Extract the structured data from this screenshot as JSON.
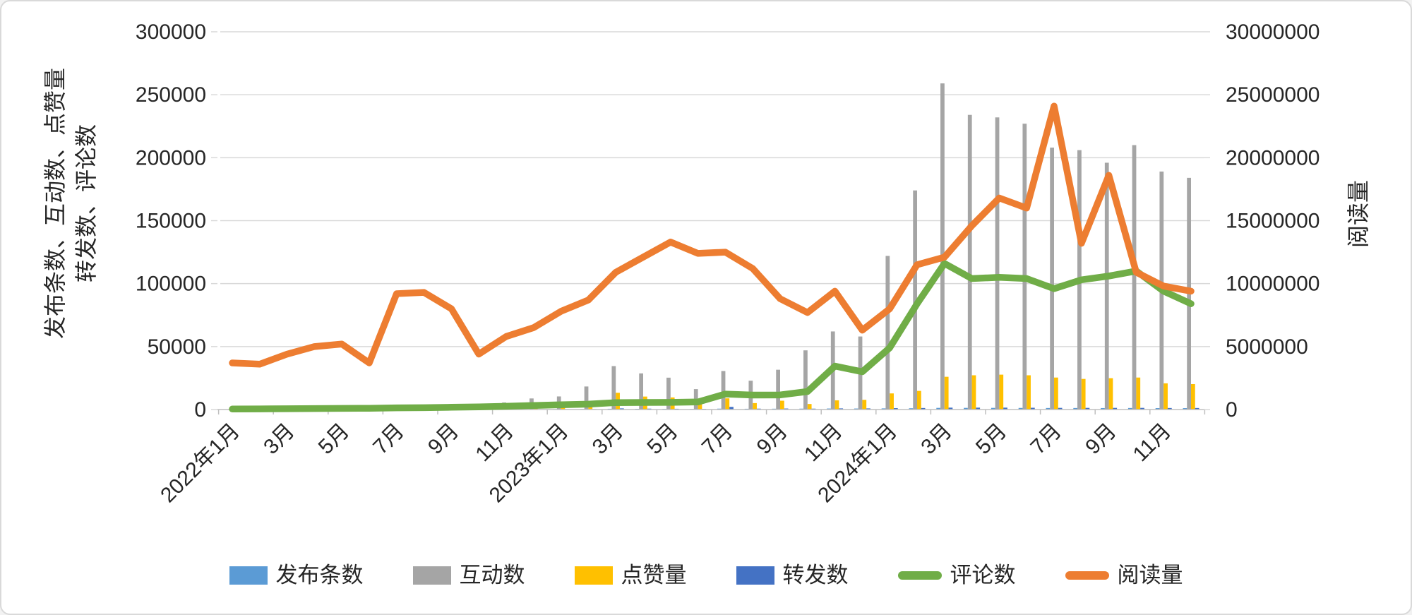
{
  "frame": {
    "background": "#ffffff",
    "border_color": "#d9d9d9"
  },
  "chart_data": {
    "type": "bar",
    "subtype": "combo-clustered-bar-with-lines",
    "title": "",
    "xlabel": "",
    "grid": true,
    "legend_position": "bottom",
    "categories": [
      "2022年1月",
      "2022年2月",
      "2022年3月",
      "2022年4月",
      "2022年5月",
      "2022年6月",
      "2022年7月",
      "2022年8月",
      "2022年9月",
      "2022年10月",
      "2022年11月",
      "2022年12月",
      "2023年1月",
      "2023年2月",
      "2023年3月",
      "2023年4月",
      "2023年5月",
      "2023年6月",
      "2023年7月",
      "2023年8月",
      "2023年9月",
      "2023年10月",
      "2023年11月",
      "2023年12月",
      "2024年1月",
      "2024年2月",
      "2024年3月",
      "2024年4月",
      "2024年5月",
      "2024年6月",
      "2024年7月",
      "2024年8月",
      "2024年9月",
      "2024年10月",
      "2024年11月",
      "2024年12月"
    ],
    "x_tick_labels": [
      "2022年1月",
      "3月",
      "5月",
      "7月",
      "9月",
      "11月",
      "2023年1月",
      "3月",
      "5月",
      "7月",
      "9月",
      "11月",
      "2024年1月",
      "3月",
      "5月",
      "7月",
      "9月",
      "11月"
    ],
    "x_tick_every": 2,
    "left_axis": {
      "title_line1": "发布条数、互动数、点赞量",
      "title_line2": "转发数、评论数",
      "min": 0,
      "max": 300000,
      "step": 50000,
      "tick_labels": [
        "0",
        "50000",
        "100000",
        "150000",
        "200000",
        "250000",
        "300000"
      ]
    },
    "right_axis": {
      "title": "阅读量",
      "min": 0,
      "max": 30000000,
      "step": 5000000,
      "tick_labels": [
        "0",
        "5000000",
        "10000000",
        "15000000",
        "20000000",
        "25000000",
        "30000000"
      ]
    },
    "series": [
      {
        "name": "发布条数",
        "type": "bar",
        "axis": "left",
        "color": "#5B9BD5",
        "values": [
          60,
          70,
          80,
          90,
          100,
          90,
          150,
          140,
          180,
          200,
          250,
          300,
          350,
          400,
          600,
          550,
          500,
          450,
          700,
          600,
          650,
          700,
          800,
          800,
          900,
          1000,
          1300,
          1300,
          1300,
          1250,
          1200,
          1200,
          1150,
          1200,
          1100,
          1100
        ]
      },
      {
        "name": "互动数",
        "type": "bar",
        "axis": "left",
        "color": "#A5A5A5",
        "values": [
          400,
          500,
          700,
          900,
          1100,
          900,
          2900,
          1800,
          3600,
          2600,
          5600,
          8800,
          10400,
          18300,
          34500,
          28700,
          25300,
          16200,
          30600,
          22900,
          31600,
          47000,
          62000,
          58000,
          122000,
          174000,
          259000,
          234000,
          232000,
          227000,
          208000,
          206000,
          196000,
          210000,
          189000,
          184000
        ]
      },
      {
        "name": "点赞量",
        "type": "bar",
        "axis": "left",
        "color": "#FFC000",
        "values": [
          100,
          120,
          150,
          200,
          250,
          200,
          400,
          350,
          500,
          450,
          700,
          1000,
          1500,
          2500,
          13300,
          10300,
          9600,
          4600,
          8900,
          5100,
          7000,
          4400,
          7300,
          7700,
          12800,
          14800,
          26000,
          27200,
          27700,
          27200,
          25400,
          24300,
          24900,
          25400,
          20800,
          20200
        ]
      },
      {
        "name": "转发数",
        "type": "bar",
        "axis": "left",
        "color": "#4472C4",
        "values": [
          40,
          50,
          60,
          70,
          80,
          70,
          120,
          110,
          150,
          160,
          200,
          250,
          300,
          350,
          900,
          700,
          600,
          500,
          2100,
          700,
          800,
          700,
          900,
          900,
          1100,
          1200,
          1500,
          1500,
          1500,
          1400,
          1300,
          1300,
          1300,
          1300,
          1200,
          1200
        ]
      },
      {
        "name": "评论数",
        "type": "line",
        "axis": "left",
        "color": "#70AD47",
        "values": [
          400,
          500,
          600,
          800,
          900,
          1000,
          1300,
          1500,
          1800,
          2100,
          2600,
          3200,
          3800,
          4300,
          5500,
          5600,
          5700,
          6000,
          12300,
          11500,
          11600,
          14300,
          34500,
          30000,
          49000,
          84000,
          116000,
          104000,
          105000,
          104000,
          96000,
          103000,
          106000,
          110000,
          94000,
          84000
        ]
      },
      {
        "name": "阅读量",
        "type": "line",
        "axis": "right",
        "color": "#ED7D31",
        "values": [
          3700000,
          3600000,
          4400000,
          5000000,
          5200000,
          3700000,
          9200000,
          9300000,
          8000000,
          4400000,
          5800000,
          6500000,
          7800000,
          8700000,
          10900000,
          12100000,
          13300000,
          12400000,
          12500000,
          11200000,
          8800000,
          7700000,
          9400000,
          6300000,
          8000000,
          11500000,
          12100000,
          14600000,
          16800000,
          16000000,
          24100000,
          13200000,
          18600000,
          10900000,
          9800000,
          9400000
        ]
      }
    ],
    "style": {
      "gridline_color": "#D9D9D9",
      "axis_line_color": "#BFBFBF",
      "tick_text_color": "#262626",
      "tick_font_size": 30,
      "line_stroke_width": 9.5
    }
  },
  "legend": {
    "items": [
      {
        "label": "发布条数",
        "color": "#5B9BD5",
        "swatch": "bar"
      },
      {
        "label": "互动数",
        "color": "#A5A5A5",
        "swatch": "bar"
      },
      {
        "label": "点赞量",
        "color": "#FFC000",
        "swatch": "bar"
      },
      {
        "label": "转发数",
        "color": "#4472C4",
        "swatch": "bar"
      },
      {
        "label": "评论数",
        "color": "#70AD47",
        "swatch": "line"
      },
      {
        "label": "阅读量",
        "color": "#ED7D31",
        "swatch": "line"
      }
    ]
  }
}
